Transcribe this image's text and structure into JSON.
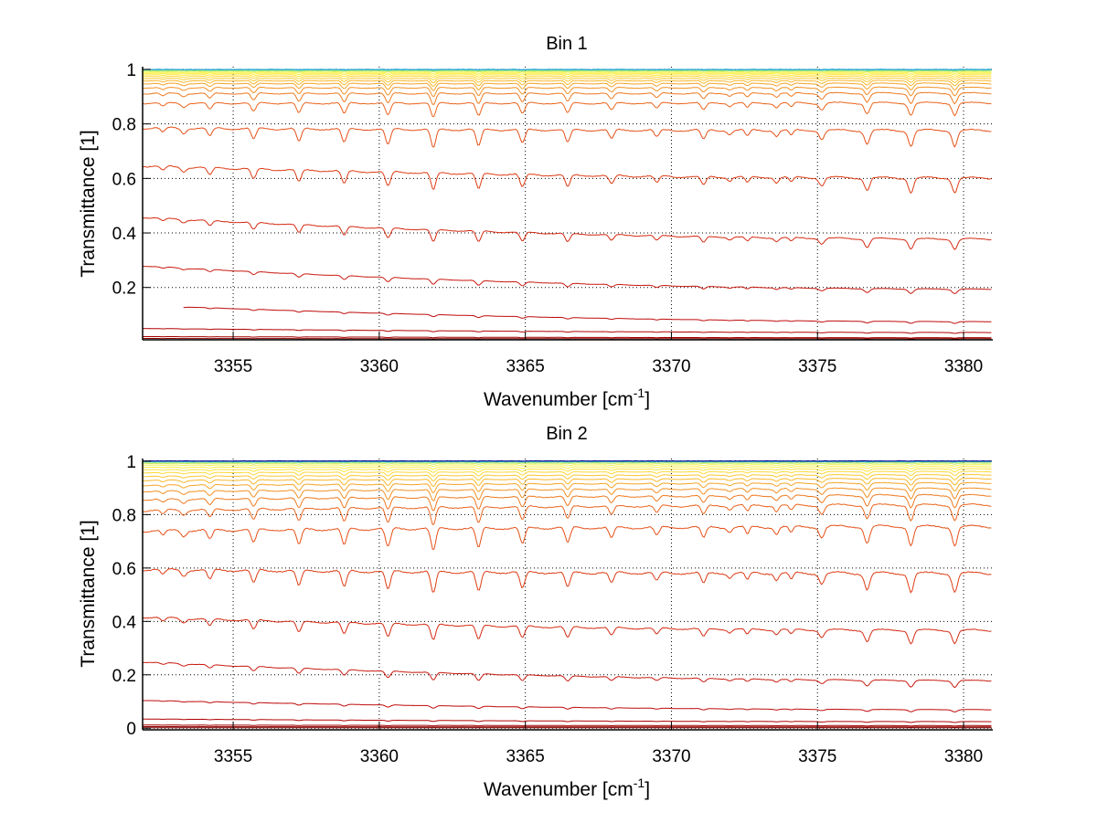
{
  "chart_data": [
    {
      "type": "line",
      "title": "Bin 1",
      "xlabel": "Wavenumber [cm",
      "xlabel_sup": "-1",
      "xlabel_end": "]",
      "ylabel": "Transmittance [1]",
      "xlim": [
        3351.9,
        3381.0
      ],
      "ylim": [
        0.008,
        1.01
      ],
      "xticks": [
        3355,
        3360,
        3365,
        3370,
        3375,
        3380
      ],
      "xtick_labels": [
        "3355",
        "3360",
        "3365",
        "3370",
        "3375",
        "3380"
      ],
      "yticks": [
        0.2,
        0.4,
        0.6,
        0.8,
        1
      ],
      "ytick_labels": [
        "0.2",
        "0.4",
        "0.6",
        "0.8",
        "1"
      ],
      "grid": true,
      "grid_style": "dotted",
      "series": [
        {
          "name": "s01",
          "start": 0.008,
          "end": 0.008,
          "depth": 0.0005,
          "color": "#7f0000"
        },
        {
          "name": "s02",
          "start": 0.013,
          "end": 0.012,
          "depth": 0.001,
          "color": "#8f0000"
        },
        {
          "name": "s03",
          "start": 0.02,
          "end": 0.016,
          "depth": 0.002,
          "color": "#a00000"
        },
        {
          "name": "s04",
          "start": 0.05,
          "end": 0.035,
          "depth": 0.004,
          "color": "#b00000"
        },
        {
          "name": "s05",
          "start": 0.135,
          "end": 0.075,
          "depth": 0.008,
          "color": "#bf0a0a",
          "x_start": 3353.3
        },
        {
          "name": "s06",
          "start": 0.28,
          "end": 0.195,
          "depth": 0.02,
          "color": "#c81a10"
        },
        {
          "name": "s07",
          "start": 0.46,
          "end": 0.38,
          "depth": 0.045,
          "color": "#d42a12"
        },
        {
          "name": "s08",
          "start": 0.65,
          "end": 0.605,
          "depth": 0.065,
          "color": "#dd3c14"
        },
        {
          "name": "s09",
          "start": 0.79,
          "end": 0.78,
          "depth": 0.07,
          "color": "#e55018"
        },
        {
          "name": "s10",
          "start": 0.88,
          "end": 0.88,
          "depth": 0.055,
          "color": "#ea641c"
        },
        {
          "name": "s11",
          "start": 0.915,
          "end": 0.915,
          "depth": 0.045,
          "color": "#ee7a20"
        },
        {
          "name": "s12",
          "start": 0.935,
          "end": 0.935,
          "depth": 0.035,
          "color": "#f29024"
        },
        {
          "name": "s13",
          "start": 0.95,
          "end": 0.95,
          "depth": 0.028,
          "color": "#f5a428"
        },
        {
          "name": "s14",
          "start": 0.96,
          "end": 0.96,
          "depth": 0.022,
          "color": "#f8b82c"
        },
        {
          "name": "s15",
          "start": 0.968,
          "end": 0.968,
          "depth": 0.017,
          "color": "#fbc830"
        },
        {
          "name": "s16",
          "start": 0.975,
          "end": 0.975,
          "depth": 0.013,
          "color": "#fdd834"
        },
        {
          "name": "s17",
          "start": 0.981,
          "end": 0.981,
          "depth": 0.01,
          "color": "#ffe338"
        },
        {
          "name": "s18",
          "start": 0.986,
          "end": 0.986,
          "depth": 0.007,
          "color": "#ffee40"
        },
        {
          "name": "s19",
          "start": 0.99,
          "end": 0.99,
          "depth": 0.005,
          "color": "#f4f24a"
        },
        {
          "name": "s20",
          "start": 0.994,
          "end": 0.994,
          "depth": 0.003,
          "color": "#c8ec5a"
        },
        {
          "name": "s21",
          "start": 0.997,
          "end": 0.997,
          "depth": 0.002,
          "color": "#7ede8a"
        },
        {
          "name": "s22",
          "start": 0.999,
          "end": 0.999,
          "depth": 0.001,
          "color": "#3cc8c0"
        },
        {
          "name": "s23",
          "start": 1.0,
          "end": 1.0,
          "depth": 0.0005,
          "color": "#1e9ed8"
        }
      ]
    },
    {
      "type": "line",
      "title": "Bin 2",
      "xlabel": "Wavenumber [cm",
      "xlabel_sup": "-1",
      "xlabel_end": "]",
      "ylabel": "Transmittance [1]",
      "xlim": [
        3351.9,
        3381.0
      ],
      "ylim": [
        -0.006,
        1.01
      ],
      "xticks": [
        3355,
        3360,
        3365,
        3370,
        3375,
        3380
      ],
      "xtick_labels": [
        "3355",
        "3360",
        "3365",
        "3370",
        "3375",
        "3380"
      ],
      "yticks": [
        0,
        0.2,
        0.4,
        0.6,
        0.8,
        1
      ],
      "ytick_labels": [
        "0",
        "0.2",
        "0.4",
        "0.6",
        "0.8",
        "1"
      ],
      "grid": true,
      "grid_style": "dotted",
      "series": [
        {
          "name": "s01",
          "start": 0.002,
          "end": 0.002,
          "depth": 0.0005,
          "color": "#7f0000"
        },
        {
          "name": "s02",
          "start": 0.006,
          "end": 0.005,
          "depth": 0.001,
          "color": "#8f0000"
        },
        {
          "name": "s03",
          "start": 0.012,
          "end": 0.01,
          "depth": 0.002,
          "color": "#a00000"
        },
        {
          "name": "s04",
          "start": 0.035,
          "end": 0.025,
          "depth": 0.004,
          "color": "#b00000"
        },
        {
          "name": "s05",
          "start": 0.105,
          "end": 0.07,
          "depth": 0.01,
          "color": "#bf0a0a"
        },
        {
          "name": "s06",
          "start": 0.25,
          "end": 0.18,
          "depth": 0.03,
          "color": "#c81a10"
        },
        {
          "name": "s07",
          "start": 0.42,
          "end": 0.37,
          "depth": 0.06,
          "color": "#d42a12"
        },
        {
          "name": "s08",
          "start": 0.6,
          "end": 0.585,
          "depth": 0.085,
          "color": "#dd3c14"
        },
        {
          "name": "s09",
          "start": 0.745,
          "end": 0.76,
          "depth": 0.085,
          "color": "#e55018"
        },
        {
          "name": "s10",
          "start": 0.82,
          "end": 0.84,
          "depth": 0.07,
          "color": "#ea641c"
        },
        {
          "name": "s11",
          "start": 0.86,
          "end": 0.875,
          "depth": 0.055,
          "color": "#ee7a20"
        },
        {
          "name": "s12",
          "start": 0.89,
          "end": 0.9,
          "depth": 0.045,
          "color": "#f29024"
        },
        {
          "name": "s13",
          "start": 0.912,
          "end": 0.92,
          "depth": 0.035,
          "color": "#f5a428"
        },
        {
          "name": "s14",
          "start": 0.93,
          "end": 0.936,
          "depth": 0.028,
          "color": "#f8b82c"
        },
        {
          "name": "s15",
          "start": 0.945,
          "end": 0.95,
          "depth": 0.022,
          "color": "#fbc830"
        },
        {
          "name": "s16",
          "start": 0.958,
          "end": 0.962,
          "depth": 0.017,
          "color": "#fdd834"
        },
        {
          "name": "s17",
          "start": 0.969,
          "end": 0.972,
          "depth": 0.013,
          "color": "#ffe338"
        },
        {
          "name": "s18",
          "start": 0.978,
          "end": 0.98,
          "depth": 0.009,
          "color": "#ffee40"
        },
        {
          "name": "s19",
          "start": 0.986,
          "end": 0.987,
          "depth": 0.006,
          "color": "#f4f24a"
        },
        {
          "name": "s20",
          "start": 0.992,
          "end": 0.993,
          "depth": 0.004,
          "color": "#c8ec5a"
        },
        {
          "name": "s21",
          "start": 0.996,
          "end": 0.997,
          "depth": 0.002,
          "color": "#7ede8a"
        },
        {
          "name": "s22",
          "start": 0.999,
          "end": 0.999,
          "depth": 0.001,
          "color": "#3cc8c0"
        },
        {
          "name": "s23",
          "start": 1.0,
          "end": 1.0,
          "depth": 0.0005,
          "color": "#1e7ed8"
        },
        {
          "name": "s24",
          "start": 1.001,
          "end": 1.001,
          "depth": 0.0003,
          "color": "#00008f"
        }
      ]
    }
  ],
  "absorption_lines": [
    {
      "x": 3352.6,
      "strength": 0.25,
      "width": 0.12
    },
    {
      "x": 3353.3,
      "strength": 0.25,
      "width": 0.12
    },
    {
      "x": 3354.2,
      "strength": 0.45,
      "width": 0.12
    },
    {
      "x": 3355.7,
      "strength": 0.6,
      "width": 0.12
    },
    {
      "x": 3357.25,
      "strength": 0.7,
      "width": 0.12
    },
    {
      "x": 3358.8,
      "strength": 0.75,
      "width": 0.12
    },
    {
      "x": 3360.3,
      "strength": 0.85,
      "width": 0.12
    },
    {
      "x": 3361.85,
      "strength": 1.0,
      "width": 0.12
    },
    {
      "x": 3363.4,
      "strength": 0.9,
      "width": 0.12
    },
    {
      "x": 3364.9,
      "strength": 0.75,
      "width": 0.12
    },
    {
      "x": 3366.45,
      "strength": 0.7,
      "width": 0.12
    },
    {
      "x": 3367.95,
      "strength": 0.5,
      "width": 0.12
    },
    {
      "x": 3369.5,
      "strength": 0.4,
      "width": 0.12
    },
    {
      "x": 3371.1,
      "strength": 0.5,
      "width": 0.12
    },
    {
      "x": 3372.0,
      "strength": 0.2,
      "width": 0.1
    },
    {
      "x": 3372.6,
      "strength": 0.35,
      "width": 0.1
    },
    {
      "x": 3373.6,
      "strength": 0.3,
      "width": 0.1
    },
    {
      "x": 3374.1,
      "strength": 0.3,
      "width": 0.1
    },
    {
      "x": 3375.15,
      "strength": 0.45,
      "width": 0.12
    },
    {
      "x": 3376.7,
      "strength": 0.7,
      "width": 0.12
    },
    {
      "x": 3378.2,
      "strength": 0.8,
      "width": 0.12
    },
    {
      "x": 3379.7,
      "strength": 0.8,
      "width": 0.12
    }
  ]
}
